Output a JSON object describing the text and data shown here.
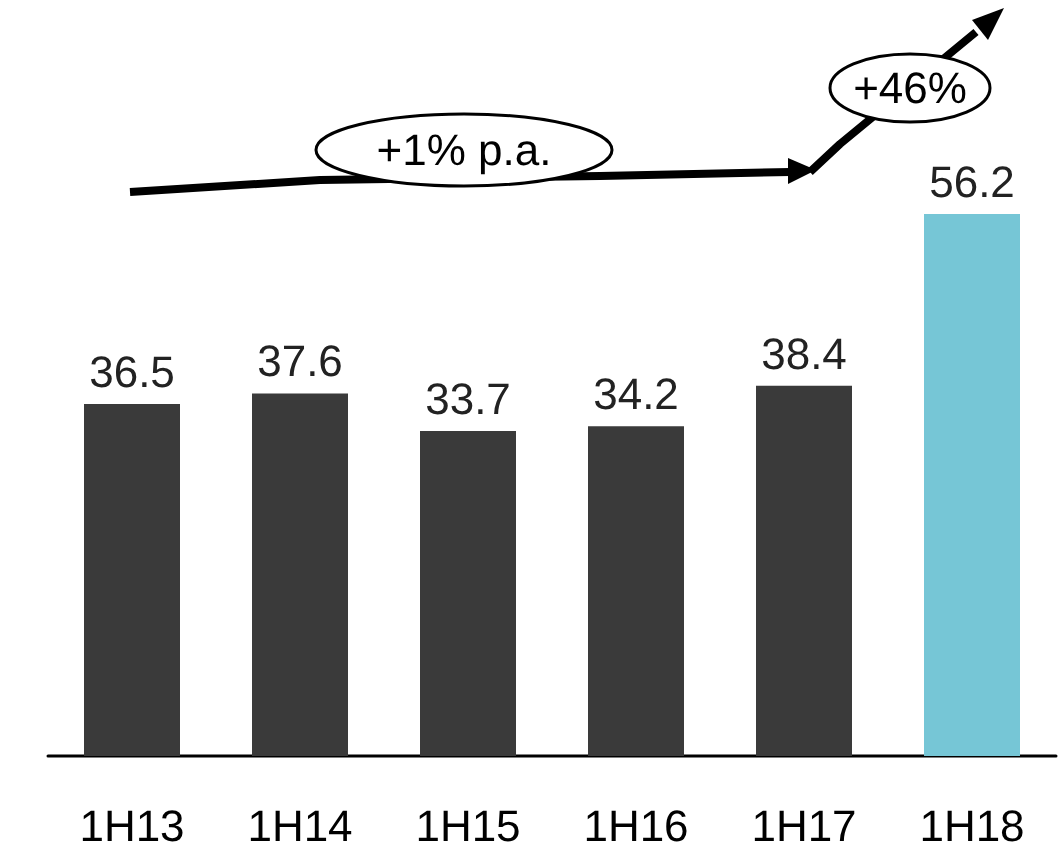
{
  "chart_data": {
    "type": "bar",
    "categories": [
      "1H13",
      "1H14",
      "1H15",
      "1H16",
      "1H17",
      "1H18"
    ],
    "values": [
      36.5,
      37.6,
      33.7,
      34.2,
      38.4,
      56.2
    ],
    "colors": [
      "#3a3a3a",
      "#3a3a3a",
      "#3a3a3a",
      "#3a3a3a",
      "#3a3a3a",
      "#76c6d6"
    ],
    "data_labels": true,
    "annotations": [
      "+1% p.a.",
      "+46%"
    ]
  }
}
